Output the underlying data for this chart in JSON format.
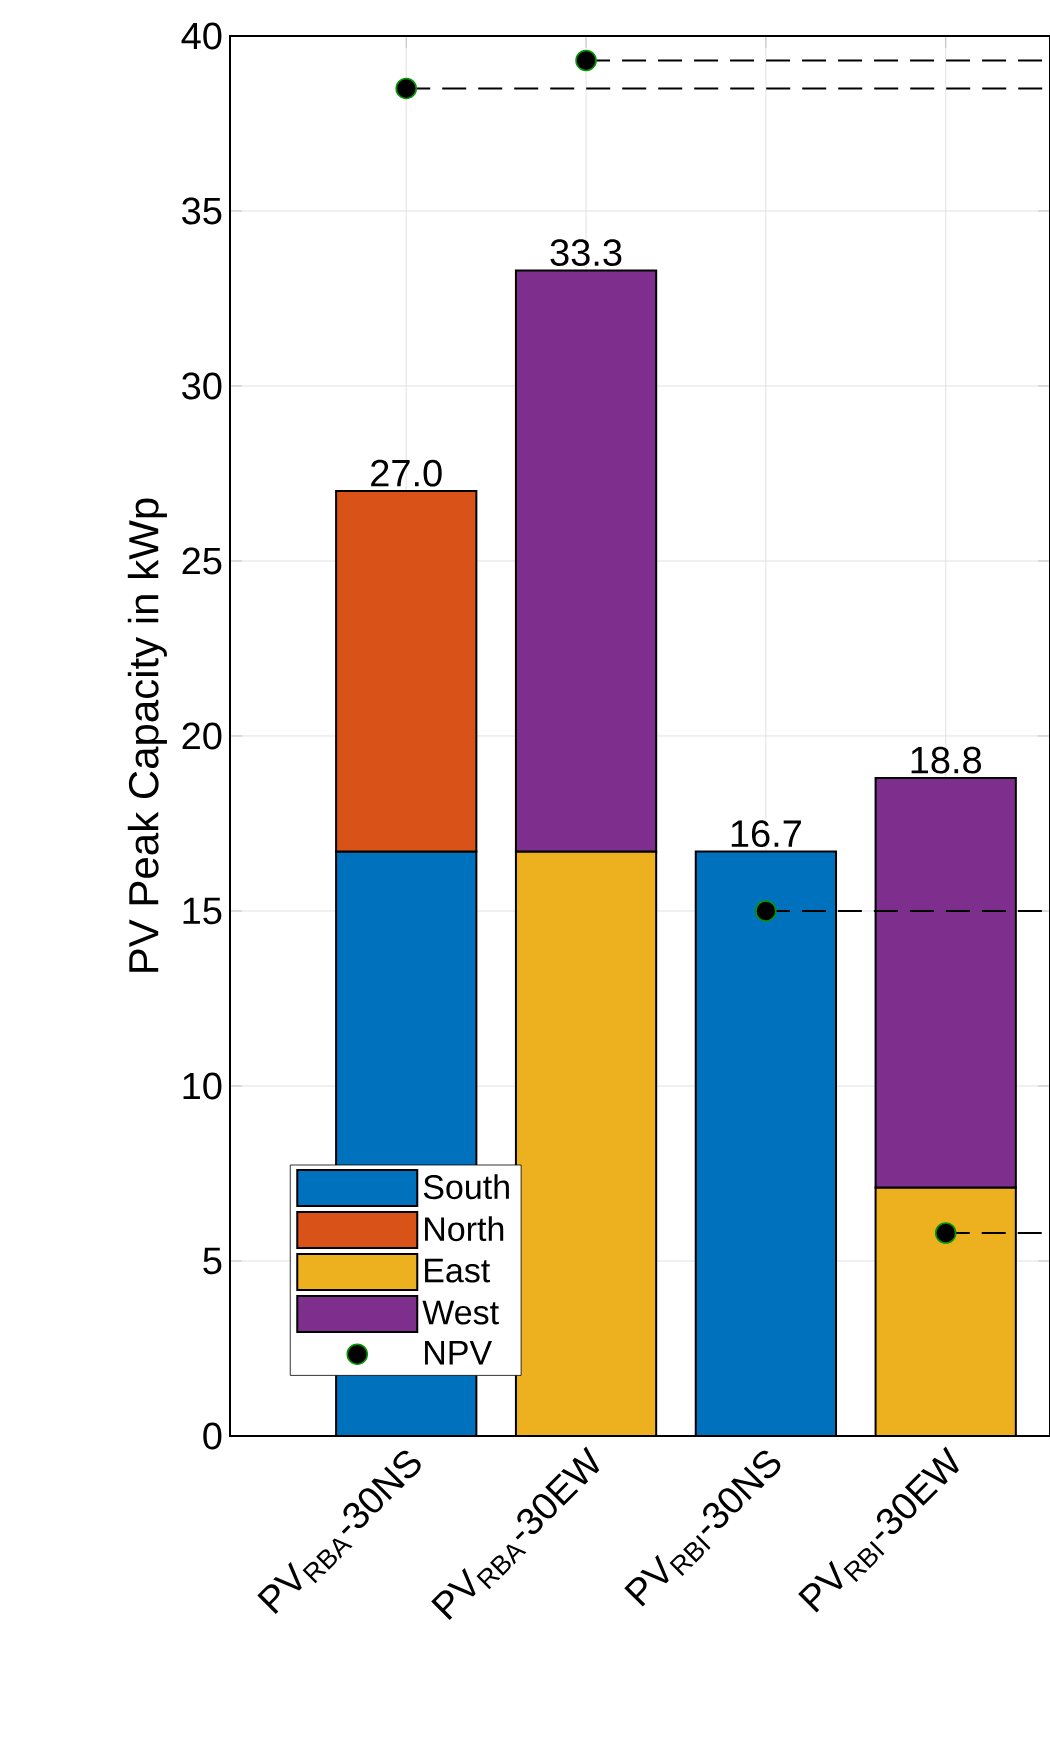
{
  "chart_data": {
    "type": "bar",
    "stacked": true,
    "ylabel": "PV Peak Capacity in kWp",
    "categories": [
      "PV$_{RBA}$-30NS",
      "PV$_{RBA}$-30EW",
      "PV$_{RBI}$-30NS",
      "PV$_{RBI}$-30EW"
    ],
    "series": [
      {
        "name": "South",
        "color": "#0072bd",
        "values": [
          16.7,
          null,
          16.7,
          null
        ]
      },
      {
        "name": "North",
        "color": "#d95319",
        "values": [
          10.3,
          null,
          null,
          null
        ]
      },
      {
        "name": "East",
        "color": "#edb120",
        "values": [
          null,
          16.7,
          null,
          7.1
        ]
      },
      {
        "name": "West",
        "color": "#7e2f8e",
        "values": [
          null,
          16.6,
          null,
          11.7
        ]
      },
      {
        "name": "NPV",
        "type": "scatter",
        "color": "#000000",
        "values": [
          38.5,
          39.3,
          15.0,
          5.8
        ]
      }
    ],
    "ref_lines": [
      {
        "axis": "y",
        "value": 38.5,
        "line_style": "dashed"
      },
      {
        "axis": "y",
        "value": 39.3,
        "line_style": "dashed"
      },
      {
        "axis": "y",
        "value": 15.0,
        "line_style": "dashed"
      },
      {
        "axis": "y",
        "value": 5.8,
        "line_style": "dashed"
      }
    ],
    "totals": [
      "27.0",
      "33.3",
      "16.7",
      "18.8"
    ],
    "ylim": [
      0,
      40
    ],
    "yticks": [
      0,
      5,
      10,
      15,
      20,
      25,
      30,
      35,
      40
    ],
    "grid": true,
    "legend": "bottom left"
  }
}
